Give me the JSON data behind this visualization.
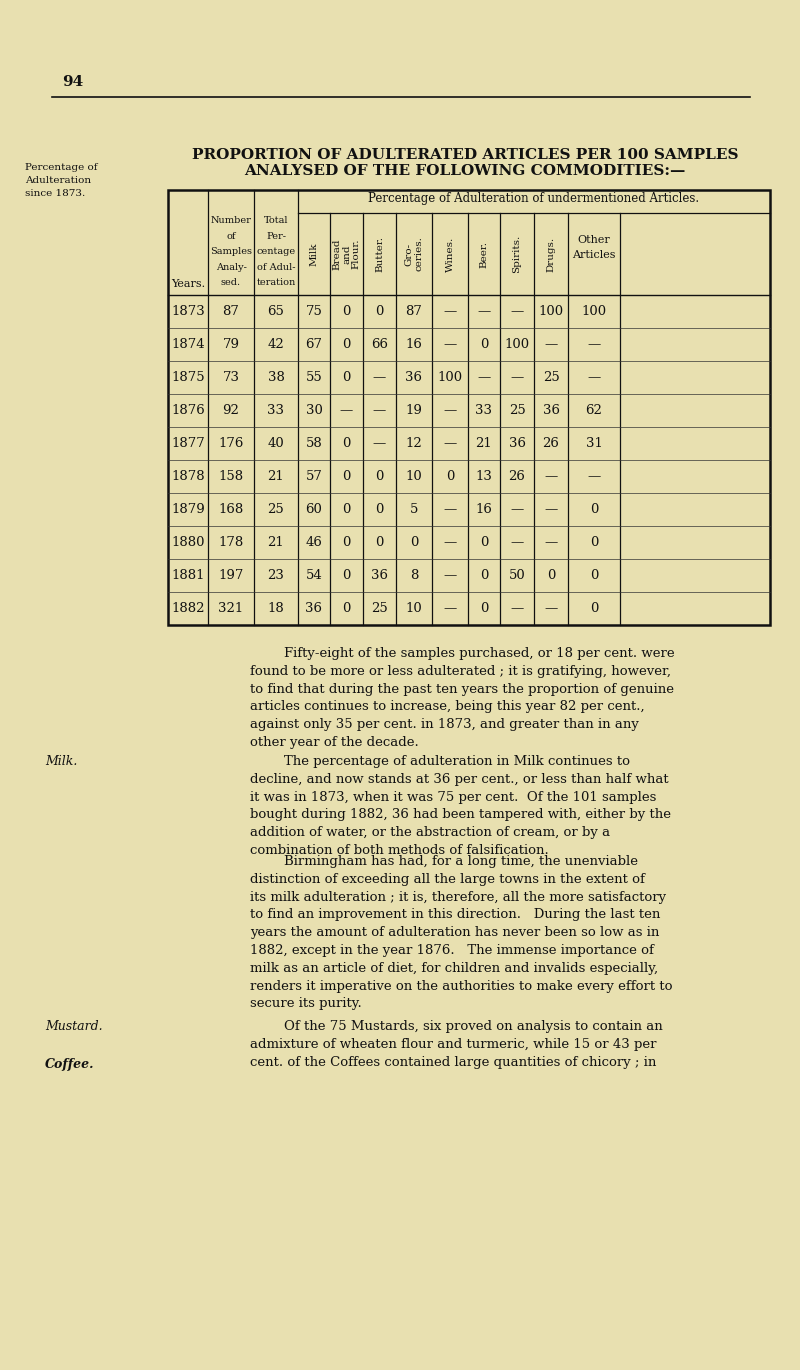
{
  "page_number": "94",
  "bg_color": "#e8e0b0",
  "left_label_lines": [
    "Percentage of",
    "Adulteration",
    "since 1873."
  ],
  "title_line1": "PROPORTION OF ADULTERATED ARTICLES PER 100 SAMPLES",
  "title_line2": "ANALYSED OF THE FOLLOWING COMMODITIES:—",
  "header_row1_span": "Percentage of Adulteration of undermentioned Articles.",
  "col_headers_short": [
    "Years.",
    "Number\nof\nSamples\nAnaly-\nsed.",
    "Total\nPer-\ncentage\nof Adul-\nteration",
    "Milk",
    "Bread\nand\nFlour.",
    "Butter.",
    "Gro-\nceries.",
    "Wines.",
    "Beer.",
    "Spirits.",
    "Drugs.",
    "Other\nArticles"
  ],
  "rows": [
    [
      "1873",
      "87",
      "65",
      "75",
      "0",
      "0",
      "87",
      "—",
      "—",
      "—",
      "100",
      "100"
    ],
    [
      "1874",
      "79",
      "42",
      "67",
      "0",
      "66",
      "16",
      "—",
      "0",
      "100",
      "—",
      "—"
    ],
    [
      "1875",
      "73",
      "38",
      "55",
      "0",
      "—",
      "36",
      "100",
      "—",
      "—",
      "25",
      "—"
    ],
    [
      "1876",
      "92",
      "33",
      "30",
      "—",
      "—",
      "19",
      "—",
      "33",
      "25",
      "36",
      "62"
    ],
    [
      "1877",
      "176",
      "40",
      "58",
      "0",
      "—",
      "12",
      "—",
      "21",
      "36",
      "26",
      "31"
    ],
    [
      "1878",
      "158",
      "21",
      "57",
      "0",
      "0",
      "10",
      "0",
      "13",
      "26",
      "—",
      "—"
    ],
    [
      "1879",
      "168",
      "25",
      "60",
      "0",
      "0",
      "5",
      "—",
      "16",
      "—",
      "—",
      "0"
    ],
    [
      "1880",
      "178",
      "21",
      "46",
      "0",
      "0",
      "0",
      "—",
      "0",
      "—",
      "—",
      "0"
    ],
    [
      "1881",
      "197",
      "23",
      "54",
      "0",
      "36",
      "8",
      "—",
      "0",
      "50",
      "0",
      "0"
    ],
    [
      "1882",
      "321",
      "18",
      "36",
      "0",
      "25",
      "10",
      "—",
      "0",
      "—",
      "—",
      "0"
    ]
  ],
  "para1_indent": "        Fifty-eight of the samples purchased, or 18 per cent. were\nfound to be more or less adulterated ; it is gratifying, however,\nto find that during the past ten years the proportion of genuine\narticles continues to increase, being this year 82 per cent.,\nagainst only 35 per cent. in 1873, and greater than in any\nother year of the decade.",
  "milk_label": "Milk.",
  "para2_indent": "        The percentage of adulteration in Milk continues to\ndecline, and now stands at 36 per cent., or less than half what\nit was in 1873, when it was 75 per cent.  Of the 101 samples\nbought during 1882, 36 had been tampered with, either by the\naddition of water, or the abstraction of cream, or by a\ncombination of both methods of falsification.",
  "para3_indent": "        Birmingham has had, for a long time, the unenviable\ndistinction of exceeding all the large towns in the extent of\nits milk adulteration ; it is, therefore, all the more satisfactory\nto find an improvement in this direction.   During the last ten\nyears the amount of adulteration has never been so low as in\n1882, except in the year 1876.   The immense importance of\nmilk as an article of diet, for children and invalids especially,\nrenders it imperative on the authorities to make every effort to\nsecure its purity.",
  "mustard_label": "Mustard.",
  "coffee_label": "Coffee.",
  "para4_indent": "        Of the 75 Mustards, six proved on analysis to contain an\nadmixture of wheaten flour and turmeric, while 15 or 43 per\ncent. of the Coffees contained large quantities of chicory ; in"
}
